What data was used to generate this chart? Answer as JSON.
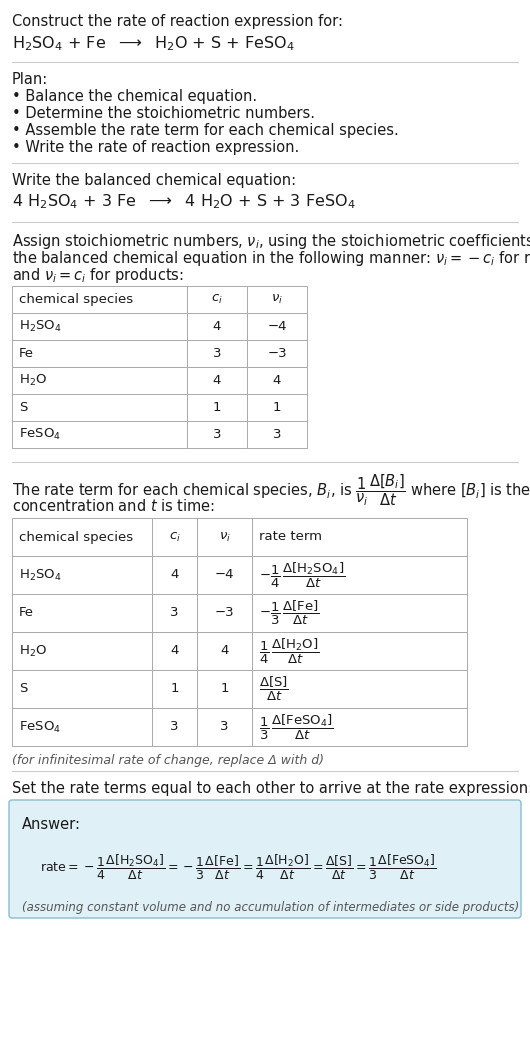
{
  "bg_color": "#ffffff",
  "text_color": "#1a1a1a",
  "gray_text": "#555555",
  "divider_color": "#cccccc",
  "table_border_color": "#aaaaaa",
  "answer_box_bg": "#dff0f7",
  "answer_box_border": "#8bbccc",
  "title_line1": "Construct the rate of reaction expression for:",
  "plan_header": "Plan:",
  "plan_items": [
    "• Balance the chemical equation.",
    "• Determine the stoichiometric numbers.",
    "• Assemble the rate term for each chemical species.",
    "• Write the rate of reaction expression."
  ],
  "balanced_header": "Write the balanced chemical equation:",
  "set_equal_text": "Set the rate terms equal to each other to arrive at the rate expression:",
  "answer_label": "Answer:",
  "answer_note": "(assuming constant volume and no accumulation of intermediates or side products)",
  "infinitesimal_note": "(for infinitesimal rate of change, replace Δ with d)",
  "table1_rows": [
    [
      "H₂SO₄",
      "4",
      "−4"
    ],
    [
      "Fe",
      "3",
      "−3"
    ],
    [
      "H₂O",
      "4",
      "4"
    ],
    [
      "S",
      "1",
      "1"
    ],
    [
      "FeSO₄",
      "3",
      "3"
    ]
  ],
  "ci_vals": [
    "4",
    "3",
    "4",
    "1",
    "3"
  ],
  "nu_vals": [
    "−4",
    "−3",
    "4",
    "1",
    "3"
  ]
}
